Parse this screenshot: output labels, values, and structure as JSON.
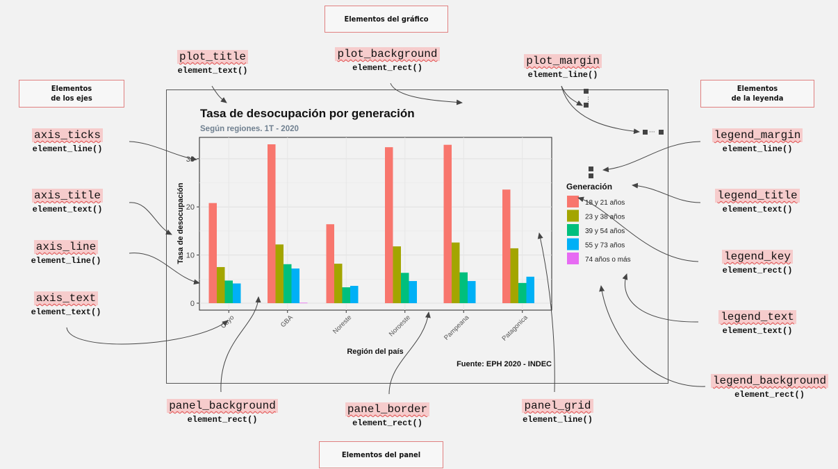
{
  "sections": {
    "grafico": "Elementos del gráfico",
    "ejes": "Elementos\nde los ejes",
    "leyenda": "Elementos\nde la leyenda",
    "panel": "Elementos del panel"
  },
  "labels": {
    "plot_title": {
      "name": "plot_title",
      "fn": "element_text()"
    },
    "plot_background": {
      "name": "plot_background",
      "fn": "element_rect()"
    },
    "plot_margin": {
      "name": "plot_margin",
      "fn": "element_line()"
    },
    "axis_ticks": {
      "name": "axis_ticks",
      "fn": "element_line()"
    },
    "axis_title": {
      "name": "axis_title",
      "fn": "element_text()"
    },
    "axis_line": {
      "name": "axis_line",
      "fn": "element_line()"
    },
    "axis_text": {
      "name": "axis_text",
      "fn": "element_text()"
    },
    "legend_margin": {
      "name": "legend_margin",
      "fn": "element_line()"
    },
    "legend_title": {
      "name": "legend_title",
      "fn": "element_text()"
    },
    "legend_key": {
      "name": "legend_key",
      "fn": "element_rect()"
    },
    "legend_text": {
      "name": "legend_text",
      "fn": "element_text()"
    },
    "legend_background": {
      "name": "legend_background",
      "fn": "element_rect()"
    },
    "panel_background": {
      "name": "panel_background",
      "fn": "element_rect()"
    },
    "panel_border": {
      "name": "panel_border",
      "fn": "element_rect()"
    },
    "panel_grid": {
      "name": "panel_grid",
      "fn": "element_line()"
    }
  },
  "chart_data": {
    "type": "bar",
    "title": "Tasa de desocupación por generación",
    "subtitle": "Según regiones. 1T - 2020",
    "caption": "Fuente: EPH 2020 - INDEC",
    "xlabel": "Región del país",
    "ylabel": "Tasa de desocupación",
    "ylim": [
      0,
      33
    ],
    "yticks": [
      0,
      10,
      20,
      30
    ],
    "categories": [
      "Cuyo",
      "GBA",
      "Noreste",
      "Noroeste",
      "Pampeana",
      "Patagonica"
    ],
    "legend_title": "Generación",
    "series": [
      {
        "name": "18 y 21 años",
        "color": "#F8766D",
        "values": [
          20.8,
          33.0,
          16.4,
          32.4,
          32.9,
          23.6
        ]
      },
      {
        "name": "23 y 38 años",
        "color": "#A3A500",
        "values": [
          7.5,
          12.2,
          8.2,
          11.8,
          12.6,
          11.4
        ]
      },
      {
        "name": "39 y 54 años",
        "color": "#00BF7D",
        "values": [
          4.7,
          8.1,
          3.3,
          6.3,
          6.4,
          4.2
        ]
      },
      {
        "name": "55 y 73 años",
        "color": "#00B0F6",
        "values": [
          4.1,
          7.2,
          3.6,
          4.6,
          4.6,
          5.5
        ]
      },
      {
        "name": "74 años o más",
        "color": "#E76BF3",
        "values": [
          null,
          0.1,
          null,
          null,
          null,
          null
        ]
      }
    ]
  }
}
